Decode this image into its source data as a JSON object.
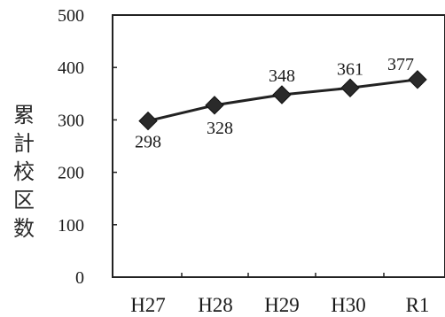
{
  "chart_data": {
    "type": "line",
    "categories": [
      "H27",
      "H28",
      "H29",
      "H30",
      "R1"
    ],
    "values": [
      298,
      328,
      348,
      361,
      377
    ],
    "ylim": [
      0,
      500
    ],
    "yticks": [
      0,
      100,
      200,
      300,
      400,
      500
    ],
    "ylabel": "累計校区数",
    "xlabel": "",
    "title": "",
    "grid": false,
    "legend": "none",
    "marker": "diamond",
    "line_color": "#222222",
    "marker_color": "#2a2a2a",
    "data_labels": [
      "298",
      "328",
      "348",
      "361",
      "377"
    ]
  }
}
